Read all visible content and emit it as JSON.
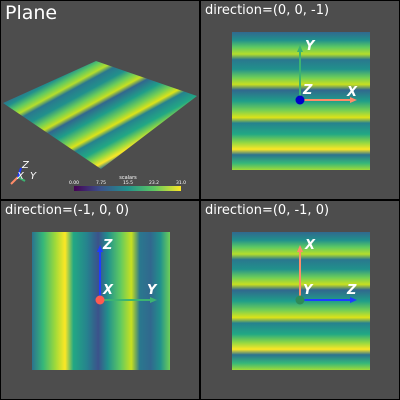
{
  "viewports": [
    {
      "title": "Plane",
      "scalar_bar": {
        "title": "scalars",
        "ticks": [
          "0.00",
          "7.75",
          "15.5",
          "23.2",
          "31.0"
        ]
      },
      "orientation_axes": {
        "x": "X",
        "y": "Y",
        "z": "Z"
      }
    },
    {
      "title": "direction=(0, 0, -1)",
      "axes": {
        "horizontal": "X",
        "vertical": "Y",
        "center": "Z"
      }
    },
    {
      "title": "direction=(-1, 0, 0)",
      "axes": {
        "horizontal": "Y",
        "vertical": "Z",
        "center": "X"
      }
    },
    {
      "title": "direction=(0, -1, 0)",
      "axes": {
        "horizontal": "Z",
        "vertical": "X",
        "center": "Y"
      }
    }
  ],
  "colors": {
    "background": "#4d4d4d",
    "separator": "#000000",
    "x_axis": "#ff8c69",
    "y_axis": "#3cb371",
    "z_axis": "#1e3cff",
    "x_origin": "#ff5a50",
    "y_origin": "#2e8b57",
    "z_origin": "#0000c8",
    "colormap": "viridis"
  }
}
